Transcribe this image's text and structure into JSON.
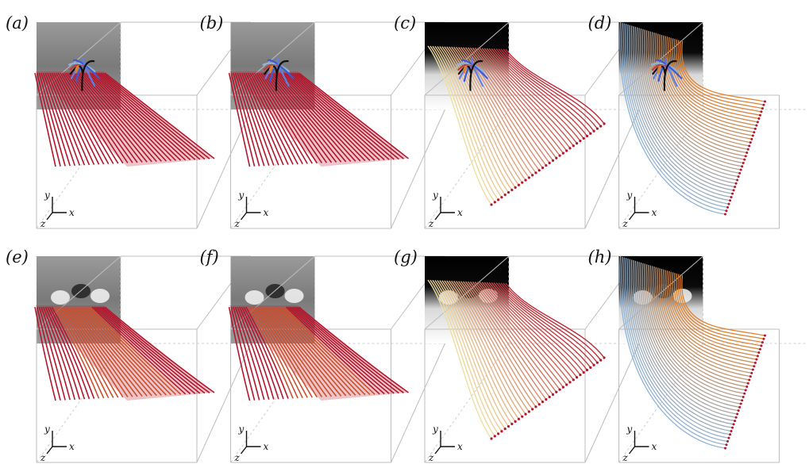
{
  "panels": [
    {
      "label": "(a)",
      "row": 0,
      "col": 0,
      "backdrop": "gray",
      "style": "vortex-red",
      "lines": "flat"
    },
    {
      "label": "(b)",
      "row": 0,
      "col": 1,
      "backdrop": "gray",
      "style": "vortex-red",
      "lines": "flat"
    },
    {
      "label": "(c)",
      "row": 0,
      "col": 2,
      "backdrop": "black",
      "style": "vortex-warm",
      "lines": "fan"
    },
    {
      "label": "(d)",
      "row": 0,
      "col": 3,
      "backdrop": "black",
      "style": "vortex-cool",
      "lines": "curl"
    },
    {
      "label": "(e)",
      "row": 1,
      "col": 0,
      "backdrop": "gray",
      "style": "sheet-red",
      "lines": "flat"
    },
    {
      "label": "(f)",
      "row": 1,
      "col": 1,
      "backdrop": "gray",
      "style": "sheet-red",
      "lines": "flat"
    },
    {
      "label": "(g)",
      "row": 1,
      "col": 2,
      "backdrop": "black",
      "style": "sheet-warm",
      "lines": "fan"
    },
    {
      "label": "(h)",
      "row": 1,
      "col": 3,
      "backdrop": "black",
      "style": "sheet-cool",
      "lines": "curl"
    }
  ],
  "axes": {
    "y": "y",
    "x": "x",
    "z": "z"
  },
  "colors": {
    "red": "#b4162c",
    "orange": "#e0802a",
    "cream": "#efe0a0",
    "blue": "#3a5bd6",
    "lightblue": "#8fb4d8",
    "black": "#111111",
    "gray": "#8a8a8a"
  }
}
